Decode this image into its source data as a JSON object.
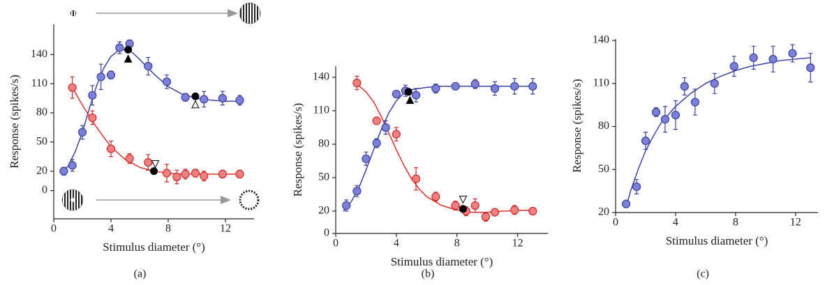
{
  "chart_data": [
    {
      "type": "scatter",
      "caption": "(a)",
      "xlabel": "Stimulus diameter (°)",
      "ylabel": "Response (spikes/s)",
      "xlim": [
        0,
        14
      ],
      "ylim": [
        -29,
        171
      ],
      "xticks": [
        0,
        4,
        8,
        12
      ],
      "yticks": [
        0,
        20,
        50,
        80,
        110,
        140
      ],
      "series": [
        {
          "color": "#7b80d8",
          "edgecolor": "#3a3f9e",
          "x": [
            0.7,
            1.3,
            2.0,
            2.7,
            3.3,
            4.0,
            4.6,
            5.3,
            6.6,
            7.9,
            9.2,
            10.5,
            11.8,
            13.0
          ],
          "values": [
            20,
            26,
            60,
            98,
            117,
            119,
            147,
            151,
            128,
            112,
            96,
            94,
            95,
            93
          ],
          "errors": [
            4,
            6,
            7,
            10,
            13,
            4,
            6,
            4,
            9,
            7,
            4,
            8,
            7,
            5
          ]
        },
        {
          "color": "#f28080",
          "edgecolor": "#d02a2a",
          "x": [
            1.3,
            2.7,
            4.0,
            5.3,
            6.6,
            7.9,
            8.6,
            9.2,
            9.9,
            10.5,
            11.8,
            13.0
          ],
          "values": [
            106,
            75,
            43,
            33,
            29,
            18,
            14,
            17,
            18,
            15,
            17,
            17
          ],
          "errors": [
            11,
            7,
            8,
            5,
            8,
            9,
            7,
            5,
            4,
            5,
            4,
            4
          ]
        }
      ],
      "fits": [
        {
          "color": "#3a42a8",
          "x": [
            0.5,
            1,
            1.5,
            2,
            2.5,
            3,
            3.5,
            4,
            4.5,
            5,
            5.5,
            6,
            7,
            8,
            9,
            10,
            11,
            12,
            13
          ],
          "values": [
            18,
            25,
            40,
            60,
            85,
            108,
            126,
            138,
            144,
            145,
            142,
            135,
            120,
            107,
            99,
            95,
            93,
            92,
            92
          ]
        },
        {
          "color": "#e0302a",
          "x": [
            1.3,
            2,
            3,
            4,
            5,
            6,
            7,
            8,
            9,
            10,
            13
          ],
          "values": [
            106,
            88,
            65,
            45,
            32,
            24,
            20,
            18,
            17,
            17,
            17
          ]
        }
      ],
      "markers": [
        {
          "x": 5.2,
          "y": 145,
          "shape": "circle"
        },
        {
          "x": 5.2,
          "y": 135,
          "shape": "triangle-up"
        },
        {
          "x": 9.9,
          "y": 97,
          "shape": "circle"
        },
        {
          "x": 9.9,
          "y": 88,
          "shape": "triangle-up-open"
        },
        {
          "x": 7.0,
          "y": 20,
          "shape": "circle"
        },
        {
          "x": 7.1,
          "y": 28,
          "shape": "triangle-down-open"
        }
      ]
    },
    {
      "type": "scatter",
      "caption": "(b)",
      "xlabel": "Stimulus diameter (°)",
      "ylabel": "Response (spikes/s)",
      "xlim": [
        0,
        14
      ],
      "ylim": [
        0,
        150
      ],
      "xticks": [
        0,
        4,
        8,
        12
      ],
      "yticks": [
        0,
        20,
        50,
        80,
        110,
        140
      ],
      "series": [
        {
          "color": "#7b80d8",
          "edgecolor": "#3a3f9e",
          "x": [
            0.7,
            1.4,
            2.0,
            2.7,
            3.3,
            4.0,
            4.6,
            5.3,
            6.6,
            7.9,
            9.2,
            10.5,
            11.8,
            13.0
          ],
          "values": [
            25,
            38,
            67,
            81,
            95,
            125,
            128,
            124,
            130,
            132,
            134,
            130,
            132,
            132
          ],
          "errors": [
            5,
            5,
            6,
            4,
            6,
            3,
            5,
            6,
            4,
            3,
            4,
            6,
            7,
            7
          ]
        },
        {
          "color": "#f28080",
          "edgecolor": "#d02a2a",
          "x": [
            1.4,
            2.7,
            4.0,
            5.3,
            6.6,
            7.9,
            8.6,
            9.2,
            9.9,
            10.5,
            11.8,
            13.0
          ],
          "values": [
            135,
            101,
            89,
            49,
            33,
            25,
            20,
            25,
            15,
            19,
            21,
            20
          ],
          "errors": [
            6,
            3,
            6,
            10,
            4,
            4,
            4,
            6,
            4,
            2,
            4,
            3
          ]
        }
      ],
      "fits": [
        {
          "color": "#3a42a8",
          "x": [
            0.5,
            1,
            1.5,
            2,
            2.5,
            3,
            3.5,
            4,
            4.5,
            5,
            6,
            7,
            9,
            13
          ],
          "values": [
            20,
            28,
            40,
            57,
            75,
            93,
            108,
            119,
            126,
            129,
            131,
            132,
            132,
            132
          ]
        },
        {
          "color": "#e0302a",
          "x": [
            1.4,
            2,
            2.5,
            3,
            3.5,
            4,
            4.5,
            5,
            5.5,
            6,
            7,
            8,
            9,
            10,
            11,
            13
          ],
          "values": [
            134,
            127,
            118,
            105,
            90,
            75,
            61,
            49,
            40,
            33,
            25,
            21,
            19,
            19,
            20,
            21
          ]
        }
      ],
      "markers": [
        {
          "x": 4.8,
          "y": 127,
          "shape": "circle"
        },
        {
          "x": 4.9,
          "y": 119,
          "shape": "triangle-up"
        },
        {
          "x": 8.4,
          "y": 22,
          "shape": "circle"
        },
        {
          "x": 8.4,
          "y": 31,
          "shape": "triangle-down-open"
        }
      ]
    },
    {
      "type": "scatter",
      "caption": "(c)",
      "xlabel": "Stimulus diameter (°)",
      "ylabel": "Response (spikes/s)",
      "xlim": [
        0,
        13.5
      ],
      "ylim": [
        20,
        141
      ],
      "xticks": [
        0,
        4,
        8,
        12
      ],
      "yticks": [
        20,
        50,
        80,
        110,
        140
      ],
      "series": [
        {
          "color": "#7b80d8",
          "edgecolor": "#3a3f9e",
          "x": [
            0.7,
            1.4,
            2.0,
            2.7,
            3.3,
            4.0,
            4.6,
            5.3,
            6.6,
            7.9,
            9.2,
            10.5,
            11.8,
            13.0
          ],
          "values": [
            26,
            38,
            70,
            90,
            85,
            88,
            108,
            97,
            110,
            122,
            128,
            127,
            131,
            121
          ],
          "errors": [
            2,
            5,
            6,
            3,
            9,
            10,
            6,
            9,
            7,
            7,
            8,
            9,
            6,
            10
          ]
        }
      ],
      "fits": [
        {
          "color": "#3a42a8",
          "x": [
            0.7,
            1,
            1.5,
            2,
            2.5,
            3,
            4,
            5,
            6,
            7,
            8,
            9,
            10,
            11,
            12,
            13
          ],
          "values": [
            24,
            35,
            50,
            63,
            73,
            82,
            94,
            103,
            110,
            115,
            119,
            122,
            124,
            126,
            127,
            128
          ]
        }
      ],
      "markers": []
    }
  ]
}
